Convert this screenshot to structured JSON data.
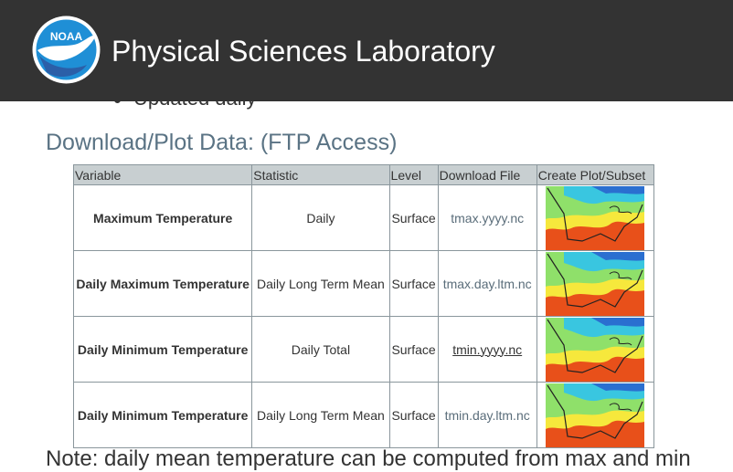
{
  "header": {
    "logo_text": "NOAA",
    "site_title": "Physical Sciences Laboratory"
  },
  "bullet_text": "Updated daily",
  "section_heading": "Download/Plot Data: (FTP Access)",
  "table": {
    "headers": [
      "Variable",
      "Statistic",
      "Level",
      "Download File",
      "Create Plot/Subset"
    ],
    "rows": [
      {
        "variable": "Maximum Temperature",
        "statistic": "Daily",
        "level": "Surface",
        "file": "tmax.yyyy.nc"
      },
      {
        "variable": "Daily Maximum Temperature",
        "statistic": "Daily Long Term Mean",
        "level": "Surface",
        "file": "tmax.day.ltm.nc"
      },
      {
        "variable": "Daily Minimum Temperature",
        "statistic": "Daily Total",
        "level": "Surface",
        "file": "tmin.yyyy.nc"
      },
      {
        "variable": "Daily Minimum Temperature",
        "statistic": "Daily Long Term Mean",
        "level": "Surface",
        "file": "tmin.day.ltm.nc"
      }
    ]
  },
  "bottom_text": "Note: daily mean temperature can be computed from max and min"
}
